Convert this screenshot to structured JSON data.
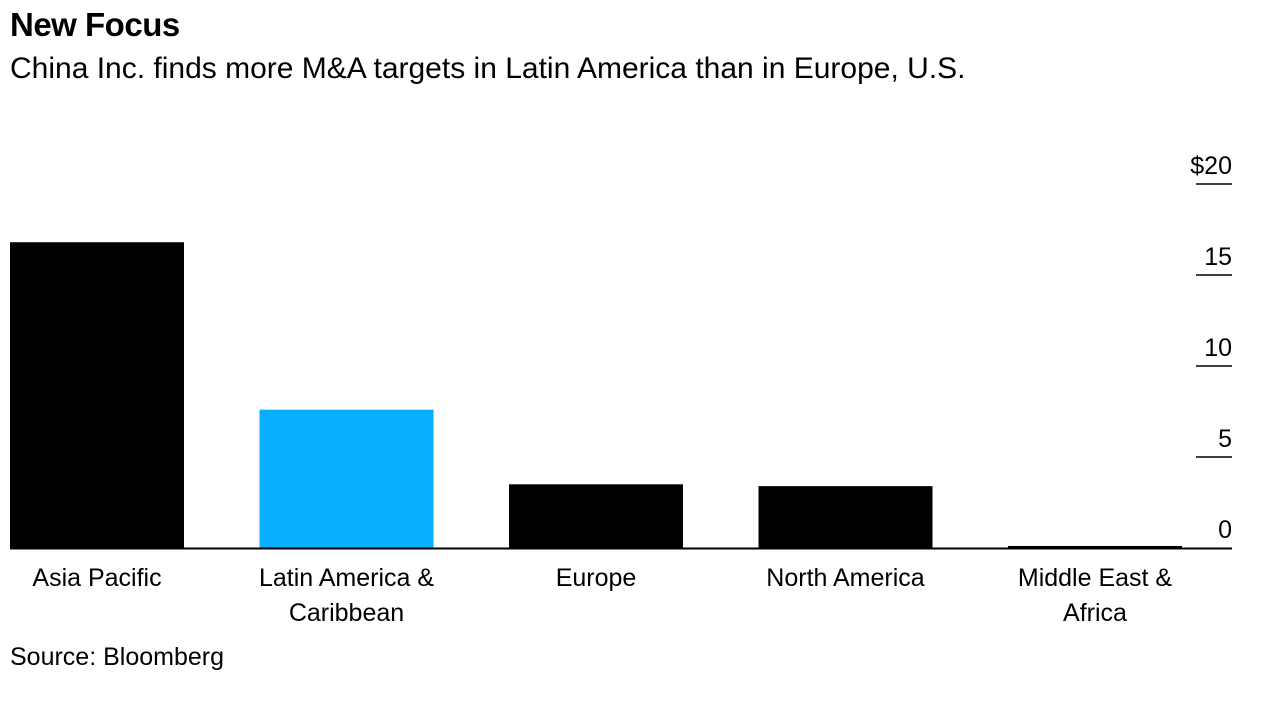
{
  "chart_data": {
    "type": "bar",
    "title": "New Focus",
    "subtitle": "China Inc. finds more M&A targets in Latin America than in Europe, U.S.",
    "categories": [
      [
        "Asia Pacific"
      ],
      [
        "Latin America &",
        "Caribbean"
      ],
      [
        "Europe"
      ],
      [
        "North America"
      ],
      [
        "Middle East &",
        "Africa"
      ]
    ],
    "values": [
      16.8,
      7.6,
      3.5,
      3.4,
      0.1
    ],
    "highlight_index": 1,
    "colors": {
      "default": "#000000",
      "highlight": "#0aaeff"
    },
    "yticks": [
      0,
      5,
      10,
      15,
      20
    ],
    "ytick_labels": [
      "0",
      "5",
      "10",
      "15",
      "$20"
    ],
    "ylim": [
      0,
      20
    ],
    "grid": false,
    "source": "Source: Bloomberg"
  }
}
